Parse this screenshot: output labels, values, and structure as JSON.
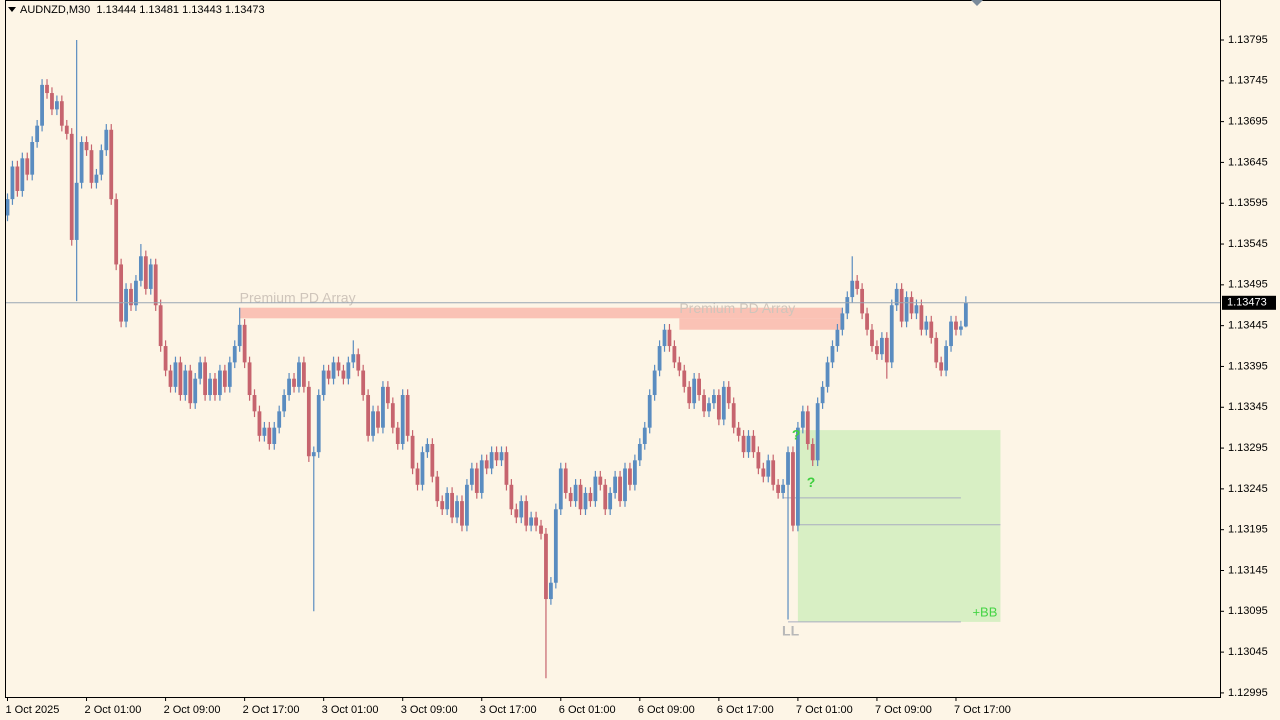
{
  "chart_data": {
    "type": "candlestick",
    "symbol": "AUDNZD,M30",
    "categories": [
      "1 Oct 2025",
      null,
      null,
      null,
      null,
      null,
      null,
      null,
      null,
      null,
      null,
      null,
      null,
      null,
      null,
      null,
      "2 Oct 01:00",
      null,
      null,
      null,
      null,
      null,
      null,
      null,
      null,
      null,
      null,
      null,
      null,
      null,
      null,
      null,
      "2 Oct 09:00",
      null,
      null,
      null,
      null,
      null,
      null,
      null,
      null,
      null,
      null,
      null,
      null,
      null,
      null,
      null,
      "2 Oct 17:00",
      null,
      null,
      null,
      null,
      null,
      null,
      null,
      null,
      null,
      null,
      null,
      null,
      null,
      null,
      null,
      "3 Oct 01:00",
      null,
      null,
      null,
      null,
      null,
      null,
      null,
      null,
      null,
      null,
      null,
      null,
      null,
      null,
      null,
      "3 Oct 09:00",
      null,
      null,
      null,
      null,
      null,
      null,
      null,
      null,
      null,
      null,
      null,
      null,
      null,
      null,
      null,
      "3 Oct 17:00",
      null,
      null,
      null,
      null,
      null,
      null,
      null,
      null,
      null,
      null,
      null,
      null,
      null,
      null,
      null,
      "6 Oct 01:00",
      null,
      null,
      null,
      null,
      null,
      null,
      null,
      null,
      null,
      null,
      null,
      null,
      null,
      null,
      null,
      "6 Oct 09:00",
      null,
      null,
      null,
      null,
      null,
      null,
      null,
      null,
      null,
      null,
      null,
      null,
      null,
      null,
      null,
      "6 Oct 17:00",
      null,
      null,
      null,
      null,
      null,
      null,
      null,
      null,
      null,
      null,
      null,
      null,
      null,
      null,
      null,
      "7 Oct 01:00",
      null,
      null,
      null,
      null,
      null,
      null,
      null,
      null,
      null,
      null,
      null,
      null,
      null,
      null,
      null,
      "7 Oct 09:00",
      null,
      null,
      null,
      null,
      null,
      null,
      null,
      null,
      null,
      null,
      null,
      null,
      null,
      null,
      null,
      "7 Oct 17:00",
      null,
      null
    ],
    "open": [
      1.1358,
      1.136,
      1.1364,
      1.1361,
      1.1365,
      1.1363,
      1.1367,
      1.1369,
      1.1374,
      1.1373,
      1.1371,
      1.1372,
      1.1369,
      1.1368,
      1.1355,
      1.1362,
      1.1367,
      1.1366,
      1.1362,
      1.1363,
      1.1366,
      1.13685,
      1.136,
      1.1352,
      1.1345,
      1.1349,
      1.1347,
      1.135,
      1.1353,
      1.1349,
      1.1352,
      1.1347,
      1.1342,
      1.1339,
      1.1337,
      1.134,
      1.1336,
      1.1339,
      1.1335,
      1.1338,
      1.134,
      1.1336,
      1.1338,
      1.1336,
      1.1339,
      1.1337,
      1.134,
      1.1342,
      1.13446,
      1.134,
      1.1336,
      1.1334,
      1.1331,
      1.1332,
      1.133,
      1.1332,
      1.1334,
      1.1336,
      1.1338,
      1.1337,
      1.134,
      1.1337,
      1.13285,
      1.1329,
      1.1336,
      1.1339,
      1.1338,
      1.134,
      1.1339,
      1.1338,
      1.134,
      1.1341,
      1.1339,
      1.1336,
      1.1331,
      1.1334,
      1.1332,
      1.1337,
      1.1335,
      1.1332,
      1.133,
      1.1336,
      1.1331,
      1.1327,
      1.1325,
      1.1329,
      1.133,
      1.1326,
      1.1323,
      1.1322,
      1.1324,
      1.1321,
      1.1323,
      1.132,
      1.1325,
      1.1327,
      1.1324,
      1.1328,
      1.1327,
      1.1329,
      1.1328,
      1.1329,
      1.1325,
      1.1322,
      1.1321,
      1.1323,
      1.132,
      1.1321,
      1.132,
      1.1319,
      1.1311,
      1.1313,
      1.1322,
      1.1327,
      1.1324,
      1.1323,
      1.1325,
      1.1322,
      1.1324,
      1.1323,
      1.1326,
      1.1325,
      1.1322,
      1.1324,
      1.1326,
      1.1323,
      1.1327,
      1.1325,
      1.1328,
      1.133,
      1.1332,
      1.1336,
      1.1339,
      1.1342,
      1.1344,
      1.1342,
      1.134,
      1.1339,
      1.1337,
      1.1335,
      1.1338,
      1.1336,
      1.1334,
      1.1335,
      1.1336,
      1.1333,
      1.1337,
      1.1335,
      1.1332,
      1.1331,
      1.1329,
      1.1331,
      1.1329,
      1.1327,
      1.1326,
      1.1328,
      1.1325,
      1.1324,
      1.1325,
      1.1329,
      1.132,
      1.1332,
      1.1334,
      1.133,
      1.1328,
      1.1335,
      1.1337,
      1.134,
      1.1342,
      1.1344,
      1.1346,
      1.1348,
      1.135,
      1.1349,
      1.1346,
      1.1344,
      1.1342,
      1.1341,
      1.1343,
      1.134,
      1.1347,
      1.1349,
      1.1345,
      1.1348,
      1.1346,
      1.1347,
      1.1344,
      1.1345,
      1.1343,
      1.134,
      1.1339,
      1.1342,
      1.1345,
      1.1344,
      1.13444
    ],
    "high": [
      1.13607,
      1.13647,
      1.13647,
      1.13657,
      1.13657,
      1.13677,
      1.13697,
      1.13747,
      1.13747,
      1.13737,
      1.13727,
      1.13727,
      1.13697,
      1.13687,
      1.13795,
      1.13677,
      1.13677,
      1.13667,
      1.13637,
      1.13667,
      1.13692,
      1.13692,
      1.13607,
      1.13527,
      1.13497,
      1.13497,
      1.13507,
      1.13545,
      1.13537,
      1.13527,
      1.13527,
      1.13477,
      1.13427,
      1.13397,
      1.13407,
      1.13407,
      1.13397,
      1.13397,
      1.13387,
      1.13407,
      1.13407,
      1.13387,
      1.13387,
      1.13397,
      1.13397,
      1.13407,
      1.13427,
      1.13467,
      1.13453,
      1.13407,
      1.13367,
      1.13347,
      1.13327,
      1.13327,
      1.13327,
      1.13347,
      1.13367,
      1.13387,
      1.13387,
      1.13407,
      1.13407,
      1.13377,
      1.13297,
      1.13367,
      1.13397,
      1.13397,
      1.13407,
      1.13407,
      1.13397,
      1.13407,
      1.13427,
      1.13417,
      1.13397,
      1.13367,
      1.13347,
      1.13347,
      1.13377,
      1.13377,
      1.13357,
      1.13327,
      1.13367,
      1.13367,
      1.13317,
      1.13277,
      1.13297,
      1.13307,
      1.13307,
      1.13267,
      1.13237,
      1.13247,
      1.13247,
      1.13237,
      1.13237,
      1.13257,
      1.13277,
      1.13277,
      1.13287,
      1.13287,
      1.13297,
      1.13297,
      1.13297,
      1.13297,
      1.13257,
      1.13227,
      1.13237,
      1.13237,
      1.13217,
      1.13217,
      1.13207,
      1.13197,
      1.13137,
      1.13227,
      1.13277,
      1.13277,
      1.13247,
      1.13257,
      1.13257,
      1.13247,
      1.13247,
      1.13267,
      1.13267,
      1.13257,
      1.13247,
      1.13267,
      1.13267,
      1.13277,
      1.13277,
      1.13287,
      1.13307,
      1.13327,
      1.13367,
      1.13397,
      1.13427,
      1.13447,
      1.13447,
      1.13427,
      1.13407,
      1.13397,
      1.13377,
      1.13387,
      1.13387,
      1.13367,
      1.13357,
      1.13367,
      1.13367,
      1.13377,
      1.13377,
      1.13357,
      1.13327,
      1.13317,
      1.13317,
      1.13317,
      1.13297,
      1.13277,
      1.13287,
      1.13287,
      1.13257,
      1.13257,
      1.13297,
      1.13297,
      1.13327,
      1.13347,
      1.13347,
      1.13307,
      1.13357,
      1.13377,
      1.13407,
      1.13427,
      1.13447,
      1.13467,
      1.13487,
      1.1353,
      1.13507,
      1.13497,
      1.13467,
      1.13447,
      1.13427,
      1.13437,
      1.13437,
      1.13477,
      1.13497,
      1.13497,
      1.13487,
      1.13487,
      1.13477,
      1.13477,
      1.13457,
      1.13457,
      1.13437,
      1.13407,
      1.13427,
      1.13457,
      1.13457,
      1.13451,
      1.13481
    ],
    "low": [
      1.13573,
      1.13593,
      1.13603,
      1.13603,
      1.13623,
      1.13623,
      1.13663,
      1.13683,
      1.13723,
      1.13703,
      1.13703,
      1.13683,
      1.13673,
      1.13543,
      1.13475,
      1.13613,
      1.13653,
      1.13613,
      1.13613,
      1.13623,
      1.13653,
      1.13593,
      1.13513,
      1.13443,
      1.13443,
      1.13463,
      1.13463,
      1.13493,
      1.13483,
      1.13483,
      1.13463,
      1.13413,
      1.13383,
      1.13363,
      1.13363,
      1.13353,
      1.13353,
      1.13343,
      1.13343,
      1.13373,
      1.13353,
      1.13353,
      1.13353,
      1.13353,
      1.13363,
      1.13363,
      1.13393,
      1.13413,
      1.13393,
      1.13353,
      1.13333,
      1.13303,
      1.13303,
      1.13293,
      1.13293,
      1.13313,
      1.13333,
      1.13353,
      1.13363,
      1.13363,
      1.13363,
      1.13278,
      1.13095,
      1.13283,
      1.13353,
      1.13373,
      1.13373,
      1.13383,
      1.13373,
      1.13373,
      1.13393,
      1.13383,
      1.13353,
      1.13303,
      1.13303,
      1.13313,
      1.13313,
      1.13343,
      1.13313,
      1.13293,
      1.13293,
      1.13303,
      1.13263,
      1.13243,
      1.13243,
      1.13283,
      1.13253,
      1.13223,
      1.13213,
      1.13213,
      1.13203,
      1.13203,
      1.13193,
      1.13193,
      1.13243,
      1.13233,
      1.13233,
      1.13263,
      1.13263,
      1.13273,
      1.13273,
      1.13243,
      1.13213,
      1.13203,
      1.13203,
      1.13193,
      1.13193,
      1.13193,
      1.13183,
      1.13013,
      1.13103,
      1.13123,
      1.13213,
      1.13233,
      1.13223,
      1.13223,
      1.13213,
      1.13213,
      1.13223,
      1.13223,
      1.13243,
      1.13213,
      1.13213,
      1.13233,
      1.13223,
      1.13223,
      1.13243,
      1.13243,
      1.13273,
      1.13293,
      1.13313,
      1.13353,
      1.13383,
      1.13413,
      1.13413,
      1.13393,
      1.13383,
      1.13363,
      1.13343,
      1.13343,
      1.13353,
      1.13333,
      1.13333,
      1.13343,
      1.13323,
      1.13323,
      1.13343,
      1.13313,
      1.13303,
      1.13283,
      1.13283,
      1.13283,
      1.13263,
      1.13253,
      1.13253,
      1.13243,
      1.13233,
      1.13233,
      1.13085,
      1.13193,
      1.13193,
      1.13313,
      1.13293,
      1.13273,
      1.13273,
      1.13343,
      1.13363,
      1.13393,
      1.13413,
      1.13433,
      1.13453,
      1.13473,
      1.13483,
      1.13453,
      1.13433,
      1.13413,
      1.13403,
      1.13403,
      1.1338,
      1.13393,
      1.13463,
      1.13443,
      1.13443,
      1.13453,
      1.13453,
      1.13433,
      1.13433,
      1.13423,
      1.13393,
      1.13383,
      1.13383,
      1.13413,
      1.13433,
      1.13433,
      1.13443
    ],
    "close": [
      1.136,
      1.1364,
      1.1361,
      1.1365,
      1.1363,
      1.1367,
      1.1369,
      1.1374,
      1.1373,
      1.1371,
      1.1372,
      1.1369,
      1.1368,
      1.1355,
      1.1362,
      1.1367,
      1.1366,
      1.1362,
      1.1363,
      1.1366,
      1.13685,
      1.136,
      1.1352,
      1.1345,
      1.1349,
      1.1347,
      1.135,
      1.1353,
      1.1349,
      1.1352,
      1.1347,
      1.1342,
      1.1339,
      1.1337,
      1.134,
      1.1336,
      1.1339,
      1.1335,
      1.1338,
      1.134,
      1.1336,
      1.1338,
      1.1336,
      1.1339,
      1.1337,
      1.134,
      1.1342,
      1.13446,
      1.134,
      1.1336,
      1.1334,
      1.1331,
      1.1332,
      1.133,
      1.1332,
      1.1334,
      1.1336,
      1.1338,
      1.1337,
      1.134,
      1.1337,
      1.13285,
      1.1329,
      1.1336,
      1.1339,
      1.1338,
      1.134,
      1.1339,
      1.1338,
      1.134,
      1.1341,
      1.1339,
      1.1336,
      1.1331,
      1.1334,
      1.1332,
      1.1337,
      1.1335,
      1.1332,
      1.133,
      1.1336,
      1.1331,
      1.1327,
      1.1325,
      1.1329,
      1.133,
      1.1326,
      1.1323,
      1.1322,
      1.1324,
      1.1321,
      1.1323,
      1.132,
      1.1325,
      1.1327,
      1.1324,
      1.1328,
      1.1327,
      1.1329,
      1.1328,
      1.1329,
      1.1325,
      1.1322,
      1.1321,
      1.1323,
      1.132,
      1.1321,
      1.132,
      1.1319,
      1.1311,
      1.1313,
      1.1322,
      1.1327,
      1.1324,
      1.1323,
      1.1325,
      1.1322,
      1.1324,
      1.1323,
      1.1326,
      1.1325,
      1.1322,
      1.1324,
      1.1326,
      1.1323,
      1.1327,
      1.1325,
      1.1328,
      1.133,
      1.1332,
      1.1336,
      1.1339,
      1.1342,
      1.1344,
      1.1342,
      1.134,
      1.1339,
      1.1337,
      1.1335,
      1.1338,
      1.1336,
      1.1334,
      1.1335,
      1.1336,
      1.1333,
      1.1337,
      1.1335,
      1.1332,
      1.1331,
      1.1329,
      1.1331,
      1.1329,
      1.1327,
      1.1326,
      1.1328,
      1.1325,
      1.1324,
      1.1325,
      1.1329,
      1.132,
      1.1332,
      1.1334,
      1.133,
      1.1328,
      1.1335,
      1.1337,
      1.134,
      1.1342,
      1.1344,
      1.1346,
      1.1348,
      1.135,
      1.1349,
      1.1346,
      1.1344,
      1.1342,
      1.1341,
      1.1343,
      1.134,
      1.1347,
      1.1349,
      1.1345,
      1.1348,
      1.1346,
      1.1347,
      1.1344,
      1.1345,
      1.1343,
      1.134,
      1.1339,
      1.1342,
      1.1345,
      1.1344,
      1.13444,
      1.13473
    ],
    "up_color": "#5a8cc0",
    "down_color": "#c6646e",
    "ylim": [
      1.1299,
      1.13844
    ],
    "yticks": [
      1.13795,
      1.13745,
      1.13695,
      1.13645,
      1.13595,
      1.13545,
      1.13495,
      1.13445,
      1.13395,
      1.13345,
      1.13295,
      1.13245,
      1.13195,
      1.13145,
      1.13095,
      1.13045,
      1.12995
    ],
    "zone_color": "#f9b9ab",
    "zones": [
      {
        "label": "Premium PD Array",
        "start": 47,
        "end": 169,
        "top": 1.13467,
        "bottom": 1.13454
      },
      {
        "label": "Premium PD Array",
        "start": 136,
        "end": 169,
        "top": 1.13454,
        "bottom": 1.1344
      }
    ],
    "target_box": {
      "label": "+BB",
      "start": 160,
      "end": 201,
      "top": 1.13317,
      "bottom": 1.13082,
      "color": "#d8efc4",
      "label_color": "#44d444"
    },
    "levels": [
      {
        "start": 157,
        "end": 193,
        "price": 1.13234
      },
      {
        "start": 160,
        "end": 201,
        "price": 1.13201
      },
      {
        "start": 158,
        "end": 193,
        "price": 1.13082
      }
    ],
    "markers": [
      {
        "label": "LL",
        "index": 158,
        "price": 1.13082,
        "color": "#b8b8b8"
      },
      {
        "label": "?",
        "index": 160,
        "price": 1.1331,
        "color": "#3fcf3f"
      },
      {
        "label": "?",
        "index": 163,
        "price": 1.13252,
        "color": "#3fcf3f"
      }
    ]
  }
}
